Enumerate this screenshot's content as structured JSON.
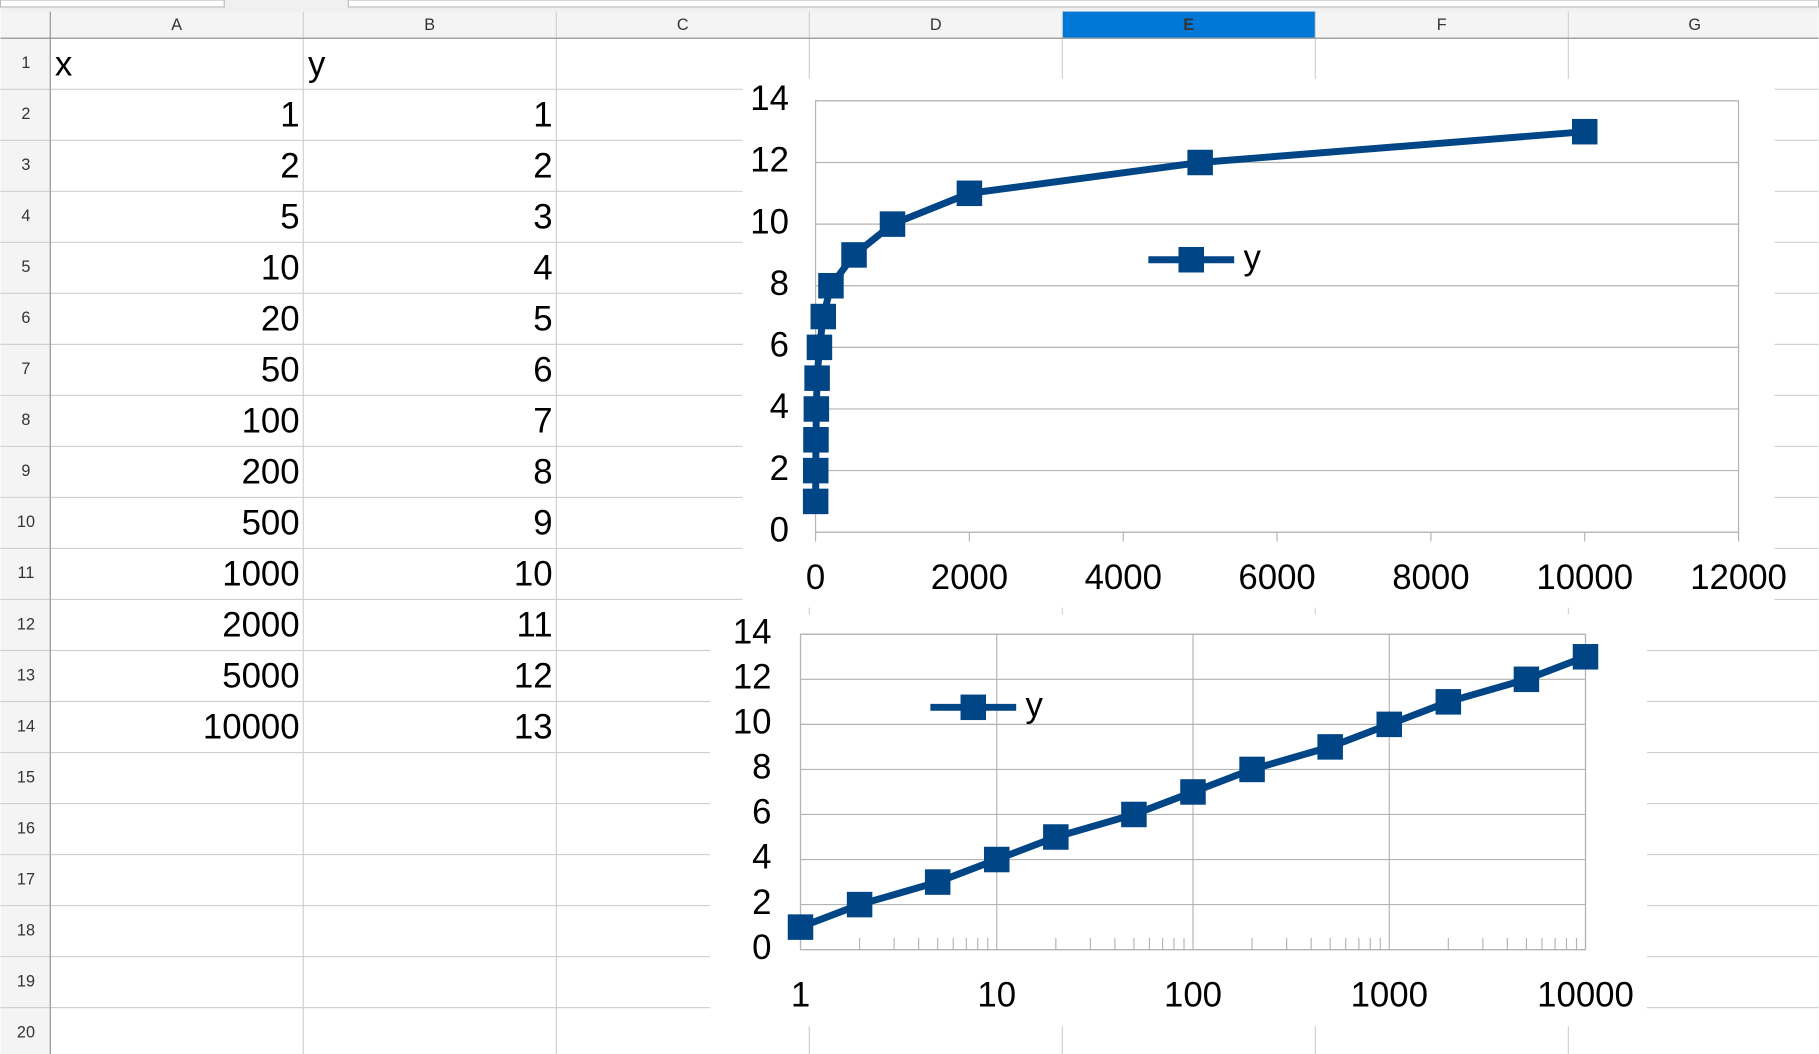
{
  "spreadsheet": {
    "columns": [
      "A",
      "B",
      "C",
      "D",
      "E",
      "F",
      "G"
    ],
    "selected_column": "E",
    "rows": [
      1,
      2,
      3,
      4,
      5,
      6,
      7,
      8,
      9,
      10,
      11,
      12,
      13,
      14,
      15,
      16,
      17,
      18,
      19,
      20
    ],
    "cells": [
      [
        "x",
        "y"
      ],
      [
        1,
        1
      ],
      [
        2,
        2
      ],
      [
        5,
        3
      ],
      [
        10,
        4
      ],
      [
        20,
        5
      ],
      [
        50,
        6
      ],
      [
        100,
        7
      ],
      [
        200,
        8
      ],
      [
        500,
        9
      ],
      [
        1000,
        10
      ],
      [
        2000,
        11
      ],
      [
        5000,
        12
      ],
      [
        10000,
        13
      ]
    ]
  },
  "chart_data": [
    {
      "type": "line",
      "x": [
        1,
        2,
        5,
        10,
        20,
        50,
        100,
        200,
        500,
        1000,
        2000,
        5000,
        10000
      ],
      "series": [
        {
          "name": "y",
          "color": "#004586",
          "values": [
            1,
            2,
            3,
            4,
            5,
            6,
            7,
            8,
            9,
            10,
            11,
            12,
            13
          ]
        }
      ],
      "xlim": [
        0,
        12000
      ],
      "xticks": [
        0,
        2000,
        4000,
        6000,
        8000,
        10000,
        12000
      ],
      "ylim": [
        0,
        14
      ],
      "yticks": [
        0,
        2,
        4,
        6,
        8,
        10,
        12,
        14
      ],
      "ygrid": true,
      "xgrid": false
    },
    {
      "type": "line",
      "x": [
        1,
        2,
        5,
        10,
        20,
        50,
        100,
        200,
        500,
        1000,
        2000,
        5000,
        10000
      ],
      "series": [
        {
          "name": "y",
          "color": "#004586",
          "values": [
            1,
            2,
            3,
            4,
            5,
            6,
            7,
            8,
            9,
            10,
            11,
            12,
            13
          ]
        }
      ],
      "xscale": "log",
      "xlim": [
        1,
        10000
      ],
      "xticks": [
        1,
        10,
        100,
        1000,
        10000
      ],
      "ylim": [
        0,
        14
      ],
      "yticks": [
        0,
        2,
        4,
        6,
        8,
        10,
        12,
        14
      ],
      "ygrid": true,
      "xgrid": true,
      "minor_ticks": true
    }
  ]
}
